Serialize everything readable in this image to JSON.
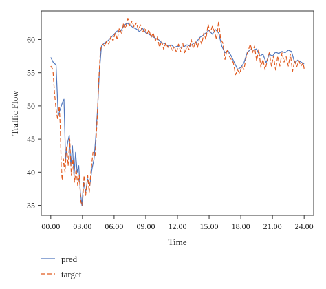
{
  "chart_data": {
    "type": "line",
    "xlabel": "Time",
    "ylabel": "Traffic Flow",
    "xlim": [
      -0.9,
      24.9
    ],
    "ylim": [
      33.5,
      64.3
    ],
    "x_ticks": [
      0,
      3,
      6,
      9,
      12,
      15,
      18,
      21,
      24
    ],
    "x_tick_labels": [
      "00.00",
      "03.00",
      "06.00",
      "09.00",
      "12.00",
      "15.00",
      "18.00",
      "21.00",
      "24.00"
    ],
    "y_ticks": [
      35,
      40,
      45,
      50,
      55,
      60
    ],
    "y_tick_labels": [
      "35",
      "40",
      "45",
      "50",
      "55",
      "60"
    ],
    "grid": false,
    "legend_position": "bottom-left",
    "series": [
      {
        "name": "pred",
        "color": "#4f76bd",
        "dash": "solid",
        "points": [
          [
            0.0,
            57.3
          ],
          [
            0.25,
            56.5
          ],
          [
            0.5,
            56.2
          ],
          [
            0.7,
            48.5
          ],
          [
            0.9,
            49.5
          ],
          [
            1.1,
            50.5
          ],
          [
            1.25,
            51.0
          ],
          [
            1.4,
            42.0
          ],
          [
            1.6,
            44.5
          ],
          [
            1.75,
            45.6
          ],
          [
            1.9,
            41.0
          ],
          [
            2.05,
            44.0
          ],
          [
            2.2,
            39.5
          ],
          [
            2.35,
            43.0
          ],
          [
            2.5,
            40.0
          ],
          [
            2.65,
            41.0
          ],
          [
            2.8,
            37.0
          ],
          [
            2.95,
            35.0
          ],
          [
            3.1,
            38.5
          ],
          [
            3.3,
            37.0
          ],
          [
            3.5,
            39.0
          ],
          [
            3.7,
            38.0
          ],
          [
            3.9,
            40.5
          ],
          [
            4.1,
            42.0
          ],
          [
            4.25,
            45.0
          ],
          [
            4.45,
            50.0
          ],
          [
            4.6,
            55.0
          ],
          [
            4.8,
            59.0
          ],
          [
            5.1,
            59.5
          ],
          [
            5.4,
            59.8
          ],
          [
            5.7,
            60.3
          ],
          [
            6.0,
            60.8
          ],
          [
            6.3,
            61.3
          ],
          [
            6.6,
            61.2
          ],
          [
            6.9,
            62.0
          ],
          [
            7.2,
            62.5
          ],
          [
            7.5,
            62.2
          ],
          [
            7.8,
            61.8
          ],
          [
            8.1,
            61.6
          ],
          [
            8.4,
            61.2
          ],
          [
            8.7,
            61.7
          ],
          [
            9.0,
            61.0
          ],
          [
            9.3,
            60.8
          ],
          [
            9.6,
            60.5
          ],
          [
            9.9,
            60.2
          ],
          [
            10.2,
            60.0
          ],
          [
            10.5,
            59.5
          ],
          [
            10.8,
            59.4
          ],
          [
            11.1,
            59.0
          ],
          [
            11.4,
            59.2
          ],
          [
            11.7,
            58.8
          ],
          [
            12.0,
            59.0
          ],
          [
            12.3,
            58.8
          ],
          [
            12.6,
            58.9
          ],
          [
            12.9,
            59.2
          ],
          [
            13.2,
            59.0
          ],
          [
            13.5,
            59.4
          ],
          [
            13.8,
            59.6
          ],
          [
            14.1,
            60.3
          ],
          [
            14.4,
            60.6
          ],
          [
            14.7,
            61.0
          ],
          [
            15.0,
            61.4
          ],
          [
            15.3,
            60.8
          ],
          [
            15.6,
            61.5
          ],
          [
            15.9,
            61.0
          ],
          [
            16.2,
            59.0
          ],
          [
            16.5,
            58.0
          ],
          [
            16.8,
            58.3
          ],
          [
            17.1,
            57.5
          ],
          [
            17.4,
            56.5
          ],
          [
            17.7,
            55.5
          ],
          [
            18.0,
            55.8
          ],
          [
            18.3,
            56.5
          ],
          [
            18.6,
            58.0
          ],
          [
            18.9,
            58.5
          ],
          [
            19.2,
            58.4
          ],
          [
            19.5,
            58.6
          ],
          [
            19.8,
            57.5
          ],
          [
            20.1,
            57.8
          ],
          [
            20.4,
            56.5
          ],
          [
            20.7,
            57.8
          ],
          [
            21.0,
            57.5
          ],
          [
            21.3,
            58.1
          ],
          [
            21.6,
            57.9
          ],
          [
            21.9,
            58.2
          ],
          [
            22.2,
            58.0
          ],
          [
            22.5,
            58.4
          ],
          [
            22.8,
            58.2
          ],
          [
            23.1,
            56.5
          ],
          [
            23.4,
            56.9
          ],
          [
            23.7,
            56.6
          ],
          [
            24.0,
            56.3
          ]
        ]
      },
      {
        "name": "target",
        "color": "#e05a1f",
        "dash": "6,3",
        "points": [
          [
            0.0,
            56.0
          ],
          [
            0.2,
            55.5
          ],
          [
            0.35,
            52.0
          ],
          [
            0.5,
            49.5
          ],
          [
            0.65,
            48.0
          ],
          [
            0.8,
            50.0
          ],
          [
            0.9,
            47.0
          ],
          [
            1.0,
            40.0
          ],
          [
            1.1,
            38.8
          ],
          [
            1.2,
            42.0
          ],
          [
            1.35,
            40.0
          ],
          [
            1.5,
            44.0
          ],
          [
            1.65,
            41.0
          ],
          [
            1.8,
            45.0
          ],
          [
            1.95,
            39.5
          ],
          [
            2.1,
            42.0
          ],
          [
            2.25,
            38.5
          ],
          [
            2.4,
            40.5
          ],
          [
            2.55,
            38.0
          ],
          [
            2.7,
            39.5
          ],
          [
            2.85,
            35.5
          ],
          [
            3.0,
            35.0
          ],
          [
            3.15,
            39.5
          ],
          [
            3.3,
            36.5
          ],
          [
            3.5,
            39.5
          ],
          [
            3.65,
            37.0
          ],
          [
            3.8,
            40.0
          ],
          [
            4.0,
            43.0
          ],
          [
            4.2,
            42.5
          ],
          [
            4.4,
            48.0
          ],
          [
            4.55,
            54.0
          ],
          [
            4.7,
            58.5
          ],
          [
            4.9,
            59.3
          ],
          [
            5.1,
            59.0
          ],
          [
            5.3,
            59.8
          ],
          [
            5.5,
            59.3
          ],
          [
            5.7,
            60.5
          ],
          [
            5.9,
            59.8
          ],
          [
            6.1,
            61.0
          ],
          [
            6.3,
            60.0
          ],
          [
            6.5,
            61.8
          ],
          [
            6.7,
            60.8
          ],
          [
            6.9,
            62.5
          ],
          [
            7.1,
            61.7
          ],
          [
            7.3,
            63.2
          ],
          [
            7.5,
            62.0
          ],
          [
            7.7,
            62.8
          ],
          [
            7.9,
            61.8
          ],
          [
            8.1,
            62.5
          ],
          [
            8.3,
            61.5
          ],
          [
            8.5,
            62.2
          ],
          [
            8.7,
            61.0
          ],
          [
            8.9,
            61.8
          ],
          [
            9.1,
            60.8
          ],
          [
            9.3,
            61.5
          ],
          [
            9.5,
            60.3
          ],
          [
            9.7,
            61.0
          ],
          [
            9.9,
            59.8
          ],
          [
            10.1,
            60.5
          ],
          [
            10.3,
            58.8
          ],
          [
            10.5,
            59.8
          ],
          [
            10.7,
            58.5
          ],
          [
            10.9,
            59.5
          ],
          [
            11.1,
            58.8
          ],
          [
            11.3,
            59.2
          ],
          [
            11.5,
            58.3
          ],
          [
            11.7,
            59.0
          ],
          [
            11.9,
            58.0
          ],
          [
            12.1,
            59.3
          ],
          [
            12.3,
            58.2
          ],
          [
            12.5,
            59.5
          ],
          [
            12.7,
            57.9
          ],
          [
            12.9,
            59.0
          ],
          [
            13.1,
            58.5
          ],
          [
            13.3,
            60.0
          ],
          [
            13.5,
            58.6
          ],
          [
            13.7,
            59.7
          ],
          [
            13.9,
            58.8
          ],
          [
            14.1,
            60.2
          ],
          [
            14.3,
            59.3
          ],
          [
            14.5,
            61.0
          ],
          [
            14.7,
            60.0
          ],
          [
            14.9,
            62.3
          ],
          [
            15.1,
            61.0
          ],
          [
            15.3,
            62.0
          ],
          [
            15.5,
            61.2
          ],
          [
            15.7,
            60.0
          ],
          [
            15.9,
            62.8
          ],
          [
            16.1,
            60.0
          ],
          [
            16.3,
            59.5
          ],
          [
            16.5,
            57.0
          ],
          [
            16.7,
            58.5
          ],
          [
            16.9,
            57.5
          ],
          [
            17.1,
            57.0
          ],
          [
            17.3,
            56.5
          ],
          [
            17.5,
            54.7
          ],
          [
            17.7,
            55.4
          ],
          [
            17.9,
            54.9
          ],
          [
            18.1,
            56.0
          ],
          [
            18.3,
            55.5
          ],
          [
            18.5,
            57.3
          ],
          [
            18.7,
            58.3
          ],
          [
            18.9,
            59.3
          ],
          [
            19.1,
            58.0
          ],
          [
            19.3,
            59.0
          ],
          [
            19.5,
            56.8
          ],
          [
            19.7,
            58.5
          ],
          [
            19.9,
            55.8
          ],
          [
            20.1,
            57.0
          ],
          [
            20.3,
            55.4
          ],
          [
            20.5,
            56.8
          ],
          [
            20.7,
            58.0
          ],
          [
            20.9,
            56.0
          ],
          [
            21.1,
            57.5
          ],
          [
            21.3,
            55.4
          ],
          [
            21.5,
            57.5
          ],
          [
            21.7,
            56.0
          ],
          [
            21.9,
            58.0
          ],
          [
            22.1,
            56.6
          ],
          [
            22.3,
            57.4
          ],
          [
            22.5,
            56.0
          ],
          [
            22.7,
            57.8
          ],
          [
            22.9,
            55.2
          ],
          [
            23.1,
            56.8
          ],
          [
            23.3,
            55.9
          ],
          [
            23.5,
            56.8
          ],
          [
            23.7,
            56.0
          ],
          [
            23.9,
            56.5
          ],
          [
            24.0,
            55.6
          ]
        ]
      }
    ]
  }
}
